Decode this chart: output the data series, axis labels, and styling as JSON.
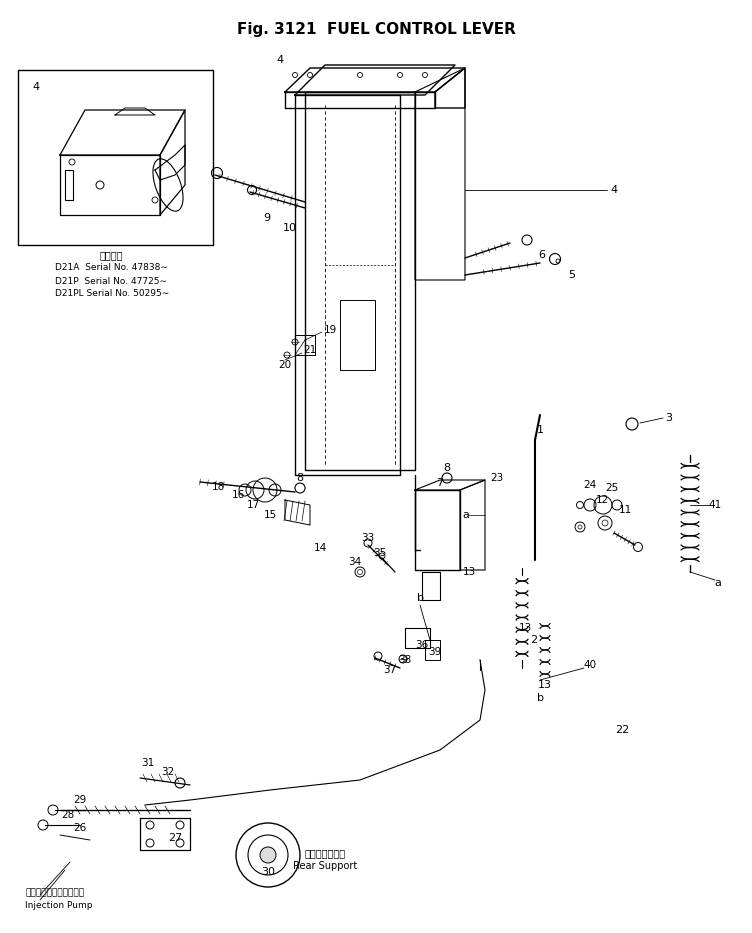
{
  "title": "Fig. 3121  FUEL CONTROL LEVER",
  "bg": "#ffffff",
  "serial_header": "適用号機",
  "serial_lines": [
    "D21A  Serial No. 47838∼",
    "D21P  Serial No. 47725∼",
    "D21PL Serial No. 50295∼"
  ],
  "inj_jp": "インジェクションポンプ",
  "inj_en": "Injection Pump",
  "rear_jp": "リヤーサポート",
  "rear_en": "Rear Support",
  "figsize": [
    7.52,
    9.33
  ],
  "dpi": 100
}
